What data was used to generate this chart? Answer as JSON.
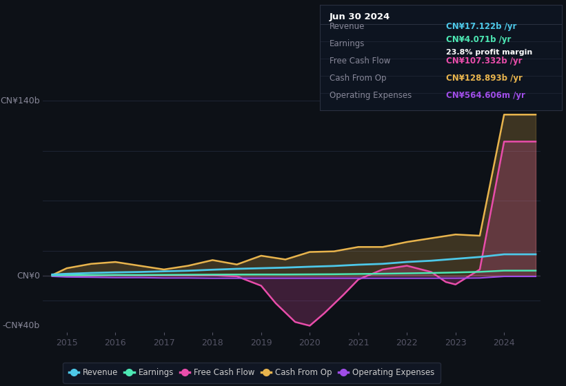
{
  "background_color": "#0d1117",
  "grid_color": "#1e2535",
  "ylim": [
    -45,
    165
  ],
  "xlim": [
    2014.5,
    2024.75
  ],
  "xticks": [
    2015,
    2016,
    2017,
    2018,
    2019,
    2020,
    2021,
    2022,
    2023,
    2024
  ],
  "y_labels": [
    {
      "val": 140,
      "text": "CN¥140b"
    },
    {
      "val": 0,
      "text": "CN¥0"
    },
    {
      "val": -40,
      "text": "-CN¥40b"
    }
  ],
  "series_order": [
    "Cash From Op",
    "Free Cash Flow",
    "Operating Expenses",
    "Earnings",
    "Revenue"
  ],
  "series": {
    "Revenue": {
      "color": "#4dc8e8",
      "lw": 2.0,
      "fill": false,
      "x": [
        2014.7,
        2015.0,
        2015.5,
        2016.0,
        2016.5,
        2017.0,
        2017.5,
        2018.0,
        2018.5,
        2019.0,
        2019.5,
        2020.0,
        2020.5,
        2021.0,
        2021.5,
        2022.0,
        2022.5,
        2023.0,
        2023.5,
        2024.0,
        2024.65
      ],
      "y": [
        1.0,
        1.5,
        2.2,
        2.7,
        3.0,
        3.5,
        4.0,
        4.8,
        5.5,
        6.0,
        6.5,
        7.2,
        7.8,
        8.8,
        9.5,
        11.0,
        12.0,
        13.5,
        15.0,
        17.122,
        17.122
      ]
    },
    "Earnings": {
      "color": "#4de8b4",
      "lw": 1.8,
      "fill": false,
      "x": [
        2014.7,
        2015.0,
        2015.5,
        2016.0,
        2016.5,
        2017.0,
        2017.5,
        2018.0,
        2018.5,
        2019.0,
        2019.5,
        2020.0,
        2020.5,
        2021.0,
        2021.5,
        2022.0,
        2022.5,
        2023.0,
        2023.5,
        2024.0,
        2024.65
      ],
      "y": [
        0.3,
        0.4,
        0.5,
        0.6,
        0.6,
        0.7,
        0.8,
        0.9,
        0.95,
        1.0,
        1.0,
        1.1,
        1.2,
        1.4,
        1.6,
        1.9,
        2.2,
        2.6,
        3.1,
        4.071,
        4.071
      ]
    },
    "Free Cash Flow": {
      "color": "#e84daa",
      "lw": 1.8,
      "fill": true,
      "fill_alpha": 0.22,
      "x": [
        2014.7,
        2015.0,
        2015.5,
        2016.0,
        2016.5,
        2017.0,
        2017.5,
        2018.0,
        2018.5,
        2019.0,
        2019.3,
        2019.7,
        2020.0,
        2020.3,
        2020.7,
        2021.0,
        2021.5,
        2022.0,
        2022.5,
        2022.8,
        2023.0,
        2023.5,
        2024.0,
        2024.65
      ],
      "y": [
        0.0,
        0.3,
        0.2,
        0.5,
        0.3,
        0.3,
        0.2,
        0.3,
        -0.5,
        -8.0,
        -22.0,
        -37.0,
        -40.0,
        -30.0,
        -15.0,
        -3.0,
        5.0,
        8.0,
        3.0,
        -5.0,
        -7.0,
        5.0,
        107.332,
        107.332
      ]
    },
    "Cash From Op": {
      "color": "#e8b44d",
      "lw": 1.8,
      "fill": true,
      "fill_alpha": 0.22,
      "x": [
        2014.7,
        2015.0,
        2015.5,
        2016.0,
        2016.5,
        2017.0,
        2017.5,
        2018.0,
        2018.5,
        2019.0,
        2019.5,
        2020.0,
        2020.5,
        2021.0,
        2021.5,
        2022.0,
        2022.5,
        2023.0,
        2023.5,
        2024.0,
        2024.65
      ],
      "y": [
        0.5,
        6.0,
        9.5,
        11.0,
        8.0,
        5.0,
        8.0,
        12.5,
        9.0,
        16.0,
        13.0,
        19.0,
        19.5,
        23.0,
        23.0,
        27.0,
        30.0,
        33.0,
        32.0,
        128.893,
        128.893
      ]
    },
    "Operating Expenses": {
      "color": "#a04de8",
      "lw": 1.5,
      "fill": false,
      "x": [
        2014.7,
        2015.0,
        2015.5,
        2016.0,
        2016.5,
        2017.0,
        2017.5,
        2018.0,
        2018.5,
        2019.0,
        2019.5,
        2020.0,
        2020.5,
        2021.0,
        2021.5,
        2022.0,
        2022.5,
        2023.0,
        2023.5,
        2024.0,
        2024.65
      ],
      "y": [
        -0.5,
        -1.0,
        -1.2,
        -1.5,
        -1.5,
        -1.8,
        -1.8,
        -2.0,
        -2.0,
        -2.0,
        -2.0,
        -2.0,
        -2.0,
        -2.0,
        -2.0,
        -2.0,
        -2.0,
        -2.0,
        -1.8,
        -0.5646,
        -0.5646
      ]
    }
  },
  "info_box": {
    "title": "Jun 30 2024",
    "rows": [
      {
        "label": "Revenue",
        "value": "CN¥17.122b /yr",
        "value_color": "#4dc8e8",
        "extra": null
      },
      {
        "label": "Earnings",
        "value": "CN¥4.071b /yr",
        "value_color": "#4de8b4",
        "extra": "23.8% profit margin"
      },
      {
        "label": "Free Cash Flow",
        "value": "CN¥107.332b /yr",
        "value_color": "#e84daa",
        "extra": null
      },
      {
        "label": "Cash From Op",
        "value": "CN¥128.893b /yr",
        "value_color": "#e8b44d",
        "extra": null
      },
      {
        "label": "Operating Expenses",
        "value": "CN¥564.606m /yr",
        "value_color": "#a04de8",
        "extra": null
      }
    ]
  },
  "legend_items": [
    "Revenue",
    "Earnings",
    "Free Cash Flow",
    "Cash From Op",
    "Operating Expenses"
  ],
  "legend_colors": [
    "#4dc8e8",
    "#4de8b4",
    "#e84daa",
    "#e8b44d",
    "#a04de8"
  ]
}
